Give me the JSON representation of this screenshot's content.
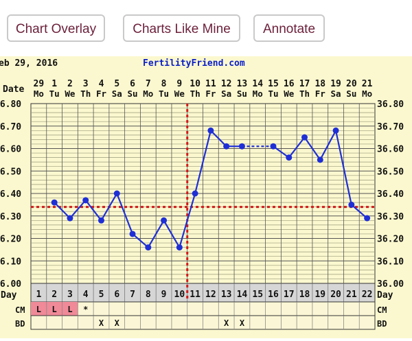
{
  "buttons": {
    "chart_overlay": "Chart Overlay",
    "charts_like_mine": "Charts Like Mine",
    "annotate": "Annotate"
  },
  "chart_header": {
    "start_date": "eb 29, 2016",
    "site": "FertilityFriend.com"
  },
  "row_labels": {
    "date": "Date",
    "day": "Day",
    "cm": "CM",
    "bd": "BD"
  },
  "colors": {
    "background": "#fbf8cf",
    "line": "#1f2fd6",
    "coverline": "#d21a1a",
    "header_title": "#0a1ec8",
    "cm_highlight": "#f08a98",
    "day_row": "#d6d6d6"
  },
  "chart_data": {
    "type": "line",
    "dates": [
      "29",
      "1",
      "2",
      "3",
      "4",
      "5",
      "6",
      "7",
      "8",
      "9",
      "10",
      "11",
      "12",
      "13",
      "14",
      "15",
      "16",
      "17",
      "18",
      "19",
      "20",
      "21"
    ],
    "weekdays": [
      "Mo",
      "Tu",
      "We",
      "Th",
      "Fr",
      "Sa",
      "Su",
      "Mo",
      "Tu",
      "We",
      "Th",
      "Fr",
      "Sa",
      "Su",
      "Mo",
      "Tu",
      "We",
      "Th",
      "Fr",
      "Sa",
      "Su",
      "Mo"
    ],
    "days": [
      "1",
      "2",
      "3",
      "4",
      "5",
      "6",
      "7",
      "8",
      "9",
      "10",
      "11",
      "12",
      "13",
      "14",
      "15",
      "16",
      "17",
      "18",
      "19",
      "20",
      "21",
      "22"
    ],
    "temperatures": [
      null,
      36.36,
      36.29,
      36.37,
      36.28,
      36.4,
      36.22,
      36.16,
      36.28,
      36.16,
      36.4,
      36.68,
      36.61,
      36.61,
      null,
      36.61,
      36.56,
      36.65,
      36.55,
      36.68,
      36.35,
      36.29
    ],
    "interpolated_segments": [
      [
        13,
        15
      ]
    ],
    "y_ticks": [
      "36.80",
      "36.70",
      "36.60",
      "36.50",
      "36.40",
      "36.30",
      "36.20",
      "36.10",
      "36.00"
    ],
    "ylim": [
      36.0,
      36.8
    ],
    "coverline": 36.34,
    "ovulation_day": 10,
    "cm": [
      "L",
      "L",
      "L",
      "*",
      "",
      "",
      "",
      "",
      "",
      "",
      "",
      "",
      "",
      "",
      "",
      "",
      "",
      "",
      "",
      "",
      "",
      ""
    ],
    "bd": [
      "",
      "",
      "",
      "",
      "X",
      "X",
      "",
      "",
      "",
      "",
      "",
      "",
      "X",
      "X",
      "",
      "",
      "",
      "",
      "",
      "",
      "",
      ""
    ],
    "grid": true
  }
}
